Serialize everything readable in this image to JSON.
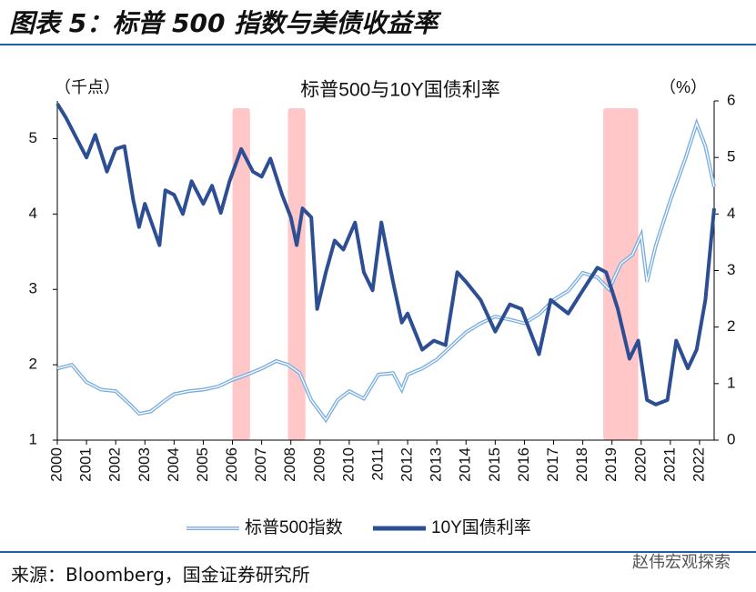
{
  "header": {
    "title": "图表 5：标普 500 指数与美债收益率"
  },
  "chart_data": {
    "type": "line",
    "title": "标普500与10Y国债利率",
    "y_label": "（千点）",
    "y2_label": "（%）",
    "xlim": [
      2000,
      2022.5
    ],
    "xticks": [
      2000,
      2001,
      2002,
      2003,
      2004,
      2005,
      2006,
      2007,
      2008,
      2009,
      2010,
      2011,
      2012,
      2013,
      2014,
      2015,
      2016,
      2017,
      2018,
      2019,
      2020,
      2021,
      2022
    ],
    "ylim": [
      1,
      5.5
    ],
    "yticks": [
      1,
      2,
      3,
      4,
      5
    ],
    "y2lim": [
      0,
      6
    ],
    "y2ticks": [
      0,
      1,
      2,
      3,
      4,
      5,
      6
    ],
    "shaded_ranges": [
      [
        2006,
        2006.6
      ],
      [
        2007.9,
        2008.5
      ],
      [
        2018.7,
        2019.9
      ]
    ],
    "shade_color": "#ffc7c7",
    "series": [
      {
        "name": "标普500指数",
        "color": "#7aaee0",
        "style": "double",
        "x": [
          2000,
          2000.5,
          2001,
          2001.5,
          2002,
          2002.5,
          2002.8,
          2003.2,
          2003.7,
          2004,
          2004.5,
          2005,
          2005.5,
          2006,
          2006.5,
          2007,
          2007.5,
          2007.9,
          2008.3,
          2008.7,
          2009.2,
          2009.6,
          2010,
          2010.5,
          2011,
          2011.5,
          2011.8,
          2012,
          2012.5,
          2013,
          2013.5,
          2014,
          2014.5,
          2015,
          2015.6,
          2016,
          2016.5,
          2017,
          2017.5,
          2018,
          2018.5,
          2018.9,
          2019.3,
          2019.7,
          2020,
          2020.2,
          2020.5,
          2021,
          2021.5,
          2021.9,
          2022.2,
          2022.5
        ],
        "values": [
          1.95,
          2.0,
          1.77,
          1.67,
          1.65,
          1.47,
          1.35,
          1.38,
          1.53,
          1.61,
          1.65,
          1.67,
          1.71,
          1.8,
          1.87,
          1.95,
          2.05,
          2.0,
          1.89,
          1.53,
          1.27,
          1.53,
          1.65,
          1.55,
          1.87,
          1.89,
          1.67,
          1.87,
          1.95,
          2.07,
          2.25,
          2.43,
          2.55,
          2.64,
          2.59,
          2.55,
          2.67,
          2.86,
          2.98,
          3.22,
          3.16,
          3.0,
          3.34,
          3.46,
          3.72,
          3.1,
          3.58,
          4.18,
          4.72,
          5.2,
          4.9,
          4.36
        ]
      },
      {
        "name": "10Y国债利率",
        "color": "#2e4e94",
        "axis": "y2",
        "x": [
          2000,
          2000.3,
          2000.8,
          2001,
          2001.3,
          2001.7,
          2002,
          2002.3,
          2002.6,
          2002.8,
          2003,
          2003.5,
          2003.7,
          2004,
          2004.3,
          2004.6,
          2005,
          2005.3,
          2005.6,
          2005.9,
          2006.3,
          2006.7,
          2007,
          2007.3,
          2007.7,
          2008,
          2008.2,
          2008.4,
          2008.7,
          2008.9,
          2009.2,
          2009.5,
          2009.8,
          2010.2,
          2010.5,
          2010.8,
          2011.1,
          2011.5,
          2011.8,
          2012,
          2012.5,
          2012.9,
          2013.3,
          2013.7,
          2014,
          2014.5,
          2015,
          2015.5,
          2015.9,
          2016.5,
          2016.9,
          2017.5,
          2018,
          2018.5,
          2018.8,
          2019.2,
          2019.6,
          2019.9,
          2020.2,
          2020.5,
          2020.9,
          2021.2,
          2021.6,
          2021.9,
          2022.2,
          2022.5
        ],
        "values": [
          5.95,
          5.7,
          5.2,
          5.0,
          5.4,
          4.75,
          5.15,
          5.2,
          4.25,
          3.77,
          4.18,
          3.45,
          4.42,
          4.34,
          4.0,
          4.58,
          4.18,
          4.5,
          4.02,
          4.58,
          5.15,
          4.75,
          4.66,
          4.98,
          4.34,
          3.94,
          3.45,
          4.1,
          3.94,
          2.32,
          2.97,
          3.53,
          3.37,
          3.85,
          2.97,
          2.65,
          3.85,
          2.8,
          2.08,
          2.24,
          1.6,
          1.76,
          1.68,
          2.97,
          2.8,
          2.48,
          1.92,
          2.4,
          2.32,
          1.52,
          2.48,
          2.24,
          2.65,
          3.05,
          2.97,
          2.32,
          1.44,
          1.76,
          0.71,
          0.63,
          0.71,
          1.76,
          1.27,
          1.6,
          2.48,
          4.1
        ]
      }
    ]
  },
  "footer": {
    "source": "来源：Bloomberg，国金证券研究所",
    "watermark": "赵伟宏观探索"
  }
}
